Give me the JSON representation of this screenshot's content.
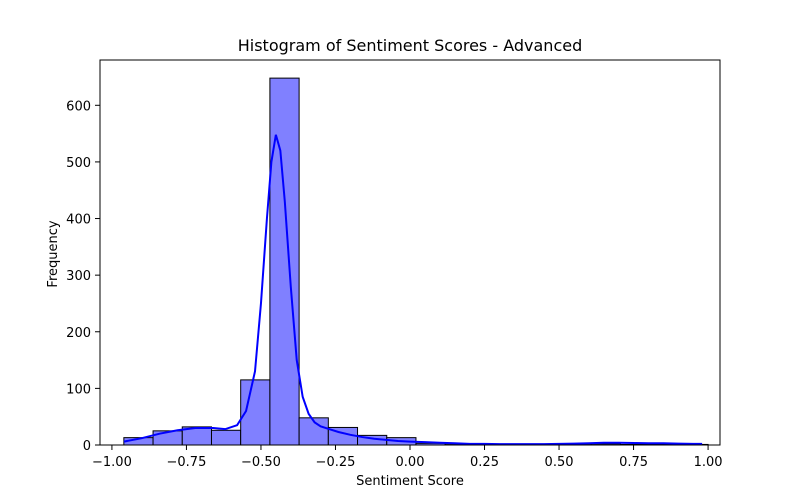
{
  "chart_data": {
    "type": "histogram",
    "title": "Histogram of Sentiment Scores - Advanced",
    "xlabel": "Sentiment Score",
    "ylabel": "Frequency",
    "xlim": [
      -1.04,
      1.04
    ],
    "ylim": [
      0,
      680
    ],
    "xticks": [
      -1.0,
      -0.75,
      -0.5,
      -0.25,
      0.0,
      0.25,
      0.5,
      0.75,
      1.0
    ],
    "xtick_labels": [
      "−1.00",
      "−0.75",
      "−0.50",
      "−0.25",
      "0.00",
      "0.25",
      "0.50",
      "0.75",
      "1.00"
    ],
    "yticks": [
      0,
      100,
      200,
      300,
      400,
      500,
      600
    ],
    "ytick_labels": [
      "0",
      "100",
      "200",
      "300",
      "400",
      "500",
      "600"
    ],
    "bin_edges": [
      -0.96,
      -0.862,
      -0.764,
      -0.666,
      -0.568,
      -0.47,
      -0.372,
      -0.274,
      -0.176,
      -0.078,
      0.02,
      0.118,
      0.216,
      0.314,
      0.412,
      0.51,
      0.608,
      0.706,
      0.804,
      0.902,
      1.0
    ],
    "counts": [
      13,
      25,
      32,
      26,
      115,
      648,
      48,
      31,
      17,
      13,
      3,
      2,
      1,
      1,
      1,
      2,
      2,
      1,
      1,
      1
    ],
    "kde": {
      "x": [
        -0.96,
        -0.9,
        -0.84,
        -0.78,
        -0.72,
        -0.66,
        -0.62,
        -0.58,
        -0.55,
        -0.52,
        -0.5,
        -0.48,
        -0.465,
        -0.45,
        -0.435,
        -0.42,
        -0.4,
        -0.38,
        -0.36,
        -0.34,
        -0.32,
        -0.3,
        -0.27,
        -0.24,
        -0.2,
        -0.16,
        -0.12,
        -0.08,
        -0.04,
        0.0,
        0.05,
        0.1,
        0.15,
        0.2,
        0.25,
        0.3,
        0.35,
        0.4,
        0.45,
        0.5,
        0.55,
        0.6,
        0.65,
        0.7,
        0.75,
        0.8,
        0.85,
        0.9,
        0.95,
        0.98
      ],
      "y": [
        6,
        12,
        20,
        26,
        30,
        30,
        28,
        35,
        60,
        130,
        250,
        400,
        500,
        548,
        520,
        430,
        280,
        150,
        85,
        55,
        40,
        33,
        28,
        23,
        18,
        14,
        11,
        9,
        7,
        6,
        5,
        4,
        3,
        2,
        2,
        1.5,
        1.5,
        1.5,
        1.5,
        2,
        2.5,
        3,
        4,
        4,
        3.5,
        3,
        3,
        2.5,
        2,
        2
      ],
      "color": "#0000ff"
    },
    "bar_fill": "#8080ff",
    "bar_edge": "#000000"
  }
}
